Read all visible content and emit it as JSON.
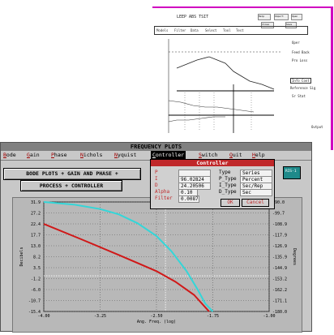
{
  "thumb": {
    "title": "LEEP ABS TSIT",
    "buttons": [
      "Help",
      "Import",
      "Open",
      "Close",
      "Save"
    ],
    "menu": [
      "Models",
      "Filter",
      "Data",
      "Select",
      "Tool",
      "Test"
    ],
    "right_labels": [
      "Oper",
      "Feed Back",
      "Pro Loss",
      "Info Cont",
      "Reference Sig",
      "Sr Stat",
      "Output"
    ]
  },
  "app": {
    "title": "FREQUENCY PLOTS",
    "menu": [
      {
        "hk": "B",
        "rest": "ode"
      },
      {
        "hk": "G",
        "rest": "ain"
      },
      {
        "hk": "P",
        "rest": "hase"
      },
      {
        "hk": "N",
        "rest": "ichols"
      },
      {
        "hk": "N",
        "rest": "yquist"
      },
      {
        "hk": "C",
        "rest": "ontroller"
      },
      {
        "hk": "S",
        "rest": "witch"
      },
      {
        "hk": "Q",
        "rest": "uit"
      },
      {
        "hk": "H",
        "rest": "elp"
      }
    ],
    "panel_title": "BODE PLOTS + GAIN AND PHASE +",
    "panel_sub": "PROCESS + CONTROLLER",
    "nav_icon_label": "RIS-1"
  },
  "dialog": {
    "title": "Controller",
    "rows": [
      {
        "label": "P",
        "value": ""
      },
      {
        "label": "I",
        "value": "96.02824"
      },
      {
        "label": "D",
        "value": "24.20506"
      },
      {
        "label": "Alpha",
        "value": "0.10"
      },
      {
        "label": "Filter",
        "value": "0.0087"
      }
    ],
    "type_rows": [
      {
        "label": "Type",
        "value": "Series"
      },
      {
        "label": "P_Type",
        "value": "Percent"
      },
      {
        "label": "I_Type",
        "value": "Sec/Rep"
      },
      {
        "label": "D_Type",
        "value": "Sec"
      }
    ],
    "ok": "OK",
    "cancel": "Cancel"
  },
  "chart_data": {
    "type": "line",
    "xlabel": "Ang. Freq. (log)",
    "ylabel_left": "Decibels",
    "ylabel_right": "Degrees",
    "x_ticks": [
      "-4.00",
      "-3.25",
      "-2.50",
      "-1.75",
      "-1.00"
    ],
    "xlim": [
      -4.0,
      -1.0
    ],
    "y_left_ticks": [
      "31.9",
      "27.2",
      "22.4",
      "17.7",
      "13.0",
      "8.2",
      "3.5",
      "-1.2",
      "-6.0",
      "-10.7",
      "-15.4"
    ],
    "ylim_left": [
      -15.4,
      31.9
    ],
    "y_right_ticks": [
      "-90.0",
      "-99.7",
      "-108.9",
      "-117.9",
      "-126.9",
      "-135.9",
      "-144.9",
      "-153.2",
      "-162.2",
      "-171.1",
      "-180.0"
    ],
    "ylim_right": [
      -180.0,
      -90.0
    ],
    "vertical_dashed_x": -2.38,
    "series": [
      {
        "axis": "right",
        "color": "#34d6d8",
        "x": [
          -4.0,
          -3.6,
          -3.25,
          -3.0,
          -2.75,
          -2.5,
          -2.3,
          -2.1,
          -1.95,
          -1.85,
          -1.75
        ],
        "y": [
          -90.0,
          -92.1,
          -95.8,
          -100.2,
          -107.5,
          -117.9,
          -130.5,
          -146.8,
          -162.2,
          -173.5,
          -180.0
        ]
      },
      {
        "axis": "left",
        "color": "#d01818",
        "x": [
          -4.0,
          -3.5,
          -3.25,
          -3.0,
          -2.75,
          -2.5,
          -2.25,
          -2.0,
          -1.8
        ],
        "y": [
          22.4,
          15.8,
          12.4,
          9.0,
          5.5,
          2.0,
          -2.5,
          -8.2,
          -15.4
        ]
      }
    ]
  }
}
